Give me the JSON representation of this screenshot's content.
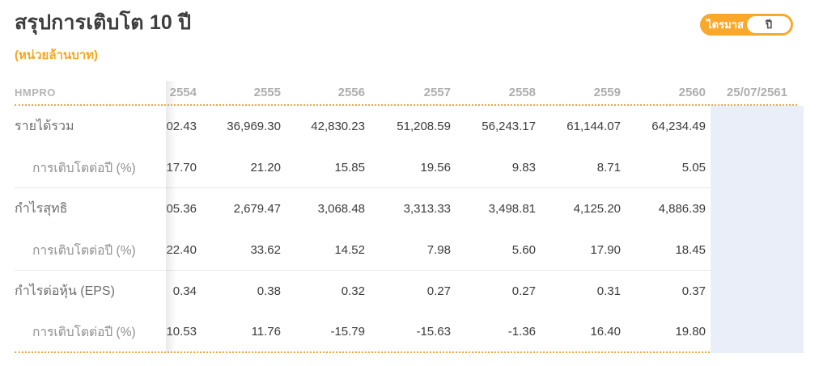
{
  "page": {
    "title": "สรุปการเติบโต 10 ปี",
    "subtitle": "(หน่วยล้านบาท)",
    "accent_color": "#F5A623",
    "highlight_column_color": "#EAEEF8"
  },
  "toggle": {
    "quarter_label": "ไตรมาส",
    "year_label": "ปี",
    "selected": "ปี"
  },
  "table": {
    "stock_symbol": "HMPRO",
    "columns": [
      "2554",
      "2555",
      "2556",
      "2557",
      "2558",
      "2559",
      "2560",
      "25/07/2561"
    ],
    "rows": [
      {
        "label": "รายได้รวม",
        "values": [
          "02.43",
          "36,969.30",
          "42,830.23",
          "51,208.59",
          "56,243.17",
          "61,144.07",
          "64,234.49",
          ""
        ]
      },
      {
        "label": "การเติบโตต่อปี (%)",
        "values": [
          "17.70",
          "21.20",
          "15.85",
          "19.56",
          "9.83",
          "8.71",
          "5.05",
          ""
        ]
      },
      {
        "label": "กำไรสุทธิ",
        "values": [
          "05.36",
          "2,679.47",
          "3,068.48",
          "3,313.33",
          "3,498.81",
          "4,125.20",
          "4,886.39",
          ""
        ]
      },
      {
        "label": "การเติบโตต่อปี (%)",
        "values": [
          "22.40",
          "33.62",
          "14.52",
          "7.98",
          "5.60",
          "17.90",
          "18.45",
          ""
        ]
      },
      {
        "label": "กำไรต่อหุ้น (EPS)",
        "values": [
          "0.34",
          "0.38",
          "0.32",
          "0.27",
          "0.27",
          "0.31",
          "0.37",
          ""
        ]
      },
      {
        "label": "การเติบโตต่อปี (%)",
        "values": [
          "10.53",
          "11.76",
          "-15.79",
          "-15.63",
          "-1.36",
          "16.40",
          "19.80",
          ""
        ]
      }
    ]
  }
}
